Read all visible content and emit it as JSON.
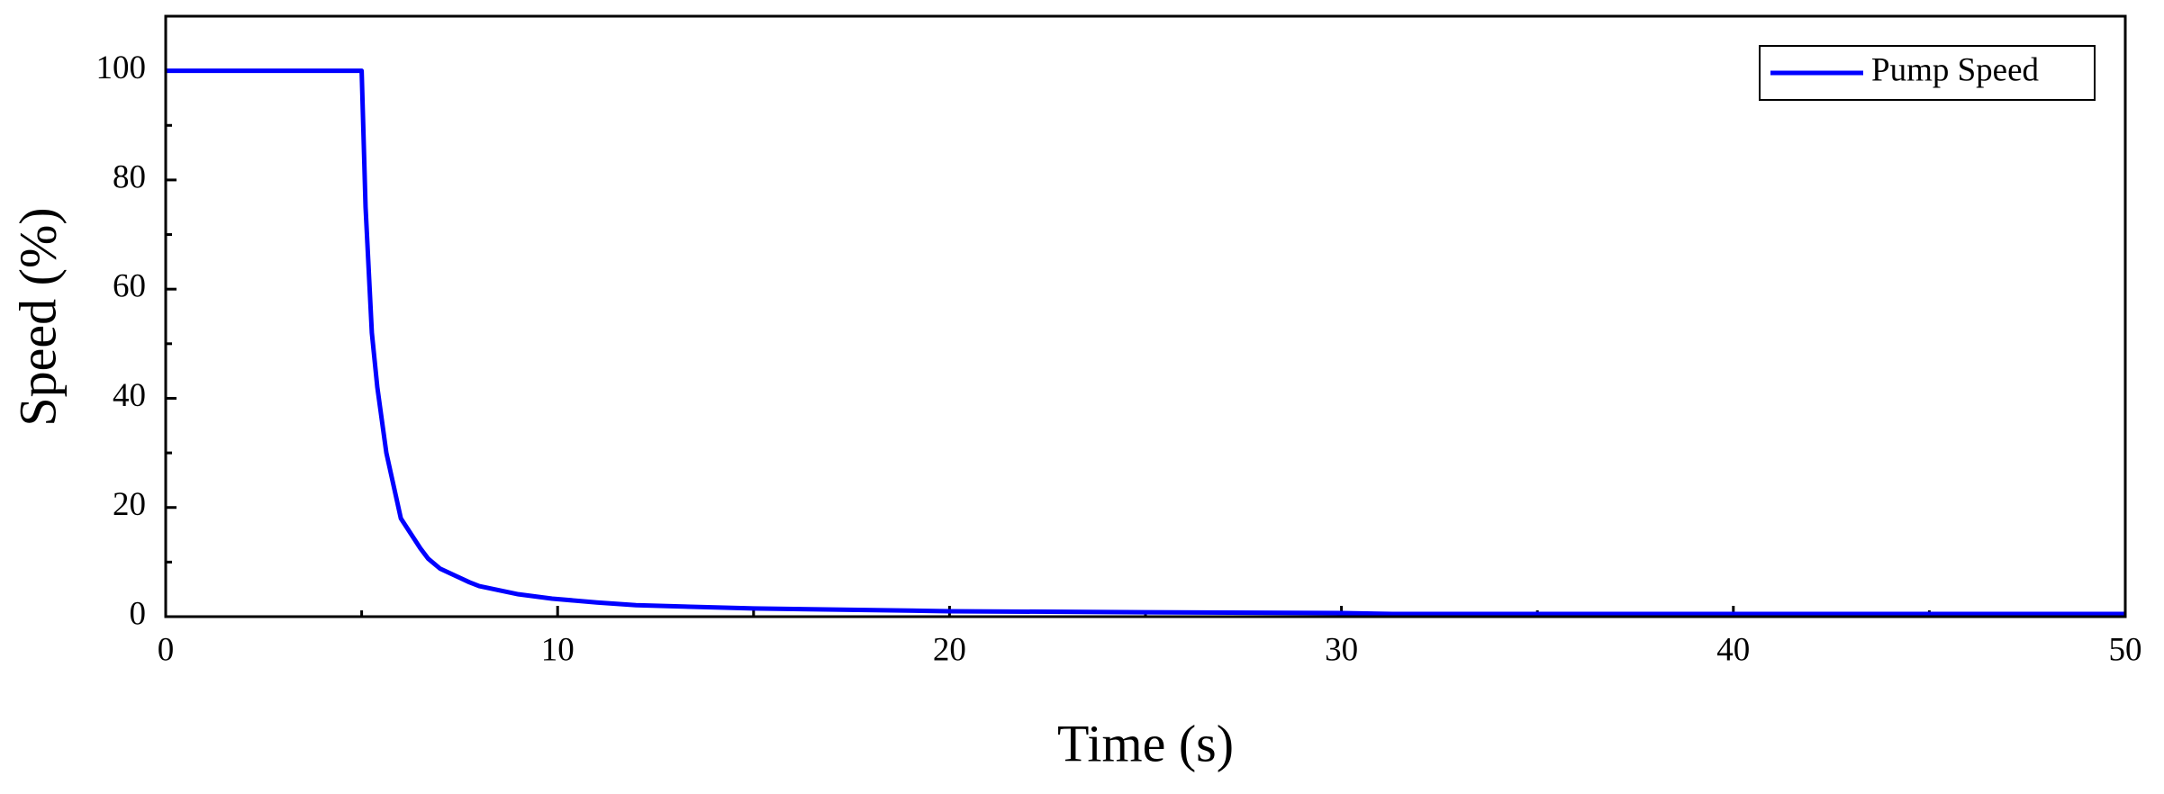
{
  "chart_data": {
    "type": "line",
    "x_label": "Time (s)",
    "y_label": "Speed (%)",
    "x": [
      0,
      5,
      5.1,
      5.26,
      5.4,
      5.63,
      6,
      6.5,
      6.7,
      7,
      7.75,
      8,
      9,
      9.86,
      11,
      12,
      15,
      20,
      25,
      30,
      31.3,
      40,
      50
    ],
    "series": [
      {
        "name": "Pump Speed",
        "color": "#0000ff",
        "values": [
          100,
          100,
          75,
          52,
          42,
          30,
          18,
          12.5,
          10.6,
          8.8,
          6.3,
          5.6,
          4.1,
          3.3,
          2.6,
          2.1,
          1.5,
          1,
          0.8,
          0.65,
          0.5,
          0.5,
          0.5
        ]
      }
    ],
    "xlim": [
      0,
      50
    ],
    "xticks": [
      0,
      10,
      20,
      30,
      40,
      50
    ],
    "ylim": [
      0,
      110
    ],
    "yticks": [
      0,
      20,
      40,
      60,
      80,
      100
    ],
    "legend": "upper right"
  }
}
